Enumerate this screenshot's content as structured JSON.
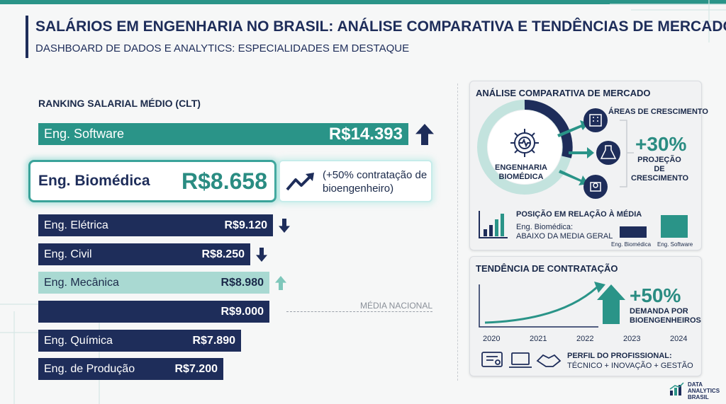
{
  "header": {
    "title": "SALÁRIOS EM ENGENHARIA NO BRASIL: ANÁLISE COMPARATIVA E TENDÊNCIAS DE MERCADO",
    "subtitle": "DASHBOARD DE DADOS E ANALYTICS: ESPECIALIDADES EM DESTAQUE"
  },
  "ranking": {
    "title": "RANKING SALARIAL MÉDIO (CLT)",
    "highlight_note": "(+50% contratação de bioengenheiro)",
    "media_label": "MÉDIA NACIONAL"
  },
  "chart_data": {
    "type": "bar",
    "title": "RANKING SALARIAL MÉDIO (CLT)",
    "categories": [
      "Eng. Software",
      "Eng. Biomédica",
      "Eng. Elétrica",
      "Eng. Civil",
      "Eng. Mecânica",
      "",
      "Eng. Química",
      "Eng. de Produção"
    ],
    "values": [
      14393,
      8658,
      9120,
      8250,
      8980,
      9000,
      7890,
      7200
    ],
    "labels": [
      "R$14.393",
      "R$8.658",
      "R$9.120",
      "R$8.250",
      "R$8.980",
      "R$9.000",
      "R$7.890",
      "R$7.200"
    ],
    "trend": [
      "up",
      "none",
      "down",
      "down",
      "up",
      "none",
      "none",
      "none"
    ],
    "colors": {
      "teal": "#2a9488",
      "navy": "#1e2d5a",
      "mint": "#a9d9d2"
    }
  },
  "market": {
    "title": "ANÁLISE COMPARATIVA DE MERCADO",
    "ring_label": "ENGENHARIA BIOMÉDICA",
    "growth_title": "ÁREAS DE CRESCIMENTO",
    "growth_value": "+30%",
    "growth_caption": "PROJEÇÃO DE CRESCIMENTO",
    "position_title": "POSIÇÃO EM RELAÇÃO À MÉDIA",
    "position_line1": "Eng. Biomédica:",
    "position_line2": "ABAIXO DA MEDIA GERAL",
    "legend_bio": "Eng. Biomédica",
    "legend_soft": "Eng. Software"
  },
  "trend": {
    "title": "TENDÊNCIA DE CONTRATAÇÃO",
    "value": "+50%",
    "caption_line1": "DEMANDA POR",
    "caption_line2": "BIOENGENHEIROS",
    "years": [
      "2020",
      "2021",
      "2022",
      "2023",
      "2024"
    ],
    "profile_title": "PERFIL DO PROFISSIONAL:",
    "profile_text": "TÉCNICO + INOVAÇÃO + GESTÃO"
  },
  "brand": {
    "line1": "DATA",
    "line2": "ANALYTICS",
    "line3": "BRASIL"
  }
}
